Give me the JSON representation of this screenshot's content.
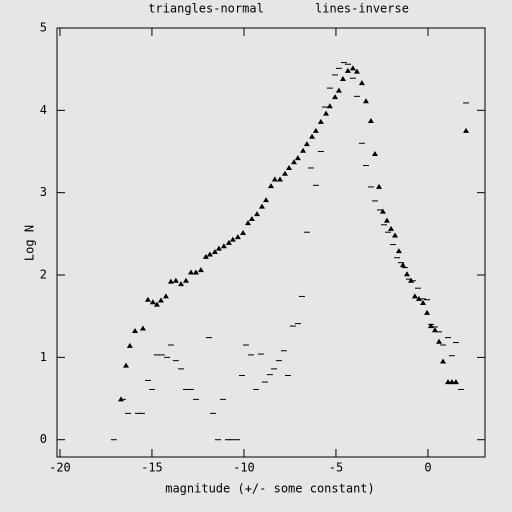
{
  "chart_data": {
    "type": "scatter",
    "x_label": "magnitude (+/- some constant)",
    "y_label": "Log N",
    "xlim": [
      -20.16,
      3.1
    ],
    "ylim": [
      -0.21,
      5
    ],
    "xticks": [
      -20,
      -15,
      -10,
      -5,
      0
    ],
    "yticks": [
      0,
      1,
      2,
      3,
      4,
      5
    ],
    "series": [
      {
        "name": "triangles-normal",
        "marker": "triangle",
        "color": "#000000",
        "x": [
          -16.68,
          -16.41,
          -16.2,
          -15.92,
          -15.49,
          -15.22,
          -14.95,
          -14.73,
          -14.51,
          -14.24,
          -13.97,
          -13.7,
          -13.42,
          -13.15,
          -12.88,
          -12.61,
          -12.34,
          -12.07,
          -11.85,
          -11.58,
          -11.36,
          -11.09,
          -10.82,
          -10.6,
          -10.33,
          -10.05,
          -9.78,
          -9.57,
          -9.29,
          -9.02,
          -8.8,
          -8.53,
          -8.32,
          -8.04,
          -7.77,
          -7.55,
          -7.28,
          -7.07,
          -6.79,
          -6.58,
          -6.3,
          -6.09,
          -5.82,
          -5.54,
          -5.33,
          -5.05,
          -4.84,
          -4.62,
          -4.35,
          -4.08,
          -3.86,
          -3.59,
          -3.37,
          -3.1,
          -2.88,
          -2.66,
          -2.45,
          -2.23,
          -2.01,
          -1.79,
          -1.58,
          -1.36,
          -1.14,
          -0.92,
          -0.71,
          -0.49,
          -0.27,
          -0.05,
          0.16,
          0.38,
          0.6,
          0.82,
          1.09,
          1.3,
          1.52,
          2.07
        ],
        "values": [
          0.49,
          0.9,
          1.14,
          1.32,
          1.35,
          1.7,
          1.67,
          1.64,
          1.69,
          1.74,
          1.92,
          1.93,
          1.89,
          1.93,
          2.03,
          2.03,
          2.06,
          2.22,
          2.25,
          2.28,
          2.32,
          2.35,
          2.39,
          2.43,
          2.46,
          2.51,
          2.63,
          2.68,
          2.74,
          2.83,
          2.91,
          3.08,
          3.16,
          3.16,
          3.23,
          3.3,
          3.37,
          3.42,
          3.51,
          3.59,
          3.68,
          3.75,
          3.86,
          3.96,
          4.05,
          4.16,
          4.24,
          4.38,
          4.48,
          4.51,
          4.47,
          4.33,
          4.11,
          3.87,
          3.47,
          3.07,
          2.77,
          2.66,
          2.56,
          2.48,
          2.29,
          2.12,
          2.01,
          1.93,
          1.74,
          1.71,
          1.66,
          1.54,
          1.38,
          1.33,
          1.19,
          0.95,
          0.7,
          0.7,
          0.7,
          3.75
        ]
      },
      {
        "name": "lines-inverse",
        "marker": "dash",
        "color": "#000000",
        "x": [
          -17.07,
          -16.58,
          -16.3,
          -15.76,
          -15.54,
          -15.22,
          -15.0,
          -14.73,
          -14.46,
          -14.18,
          -13.97,
          -13.7,
          -13.42,
          -13.15,
          -12.88,
          -12.61,
          -11.9,
          -11.68,
          -11.41,
          -11.14,
          -10.87,
          -10.65,
          -10.38,
          -10.11,
          -9.89,
          -9.62,
          -9.35,
          -9.08,
          -8.86,
          -8.59,
          -8.37,
          -8.1,
          -7.83,
          -7.61,
          -7.34,
          -7.07,
          -6.85,
          -6.58,
          -6.36,
          -6.09,
          -5.82,
          -5.6,
          -5.33,
          -5.05,
          -4.84,
          -4.57,
          -4.35,
          -4.08,
          -3.86,
          -3.59,
          -3.37,
          -3.1,
          -2.88,
          -2.61,
          -2.39,
          -2.17,
          -1.9,
          -1.68,
          -1.47,
          -1.25,
          -1.03,
          -0.82,
          -0.54,
          -0.27,
          -0.05,
          0.16,
          0.38,
          0.6,
          0.82,
          1.09,
          1.3,
          1.52,
          1.79,
          2.07
        ],
        "values": [
          0,
          0.49,
          0.32,
          0.32,
          0.32,
          0.72,
          0.61,
          1.03,
          1.03,
          1.0,
          1.15,
          0.96,
          0.86,
          0.61,
          0.61,
          0.49,
          1.24,
          0.32,
          0,
          0.49,
          0,
          0,
          0,
          0.78,
          1.15,
          1.03,
          0.61,
          1.04,
          0.7,
          0.79,
          0.86,
          0.96,
          1.08,
          0.78,
          1.38,
          1.41,
          1.74,
          2.52,
          3.3,
          3.09,
          3.5,
          4.04,
          4.27,
          4.43,
          4.51,
          4.58,
          4.56,
          4.39,
          4.17,
          3.6,
          3.33,
          3.07,
          2.9,
          2.79,
          2.61,
          2.52,
          2.37,
          2.21,
          2.15,
          2.09,
          1.95,
          1.93,
          1.84,
          1.71,
          1.7,
          1.4,
          1.37,
          1.31,
          1.15,
          1.24,
          1.02,
          1.18,
          0.61,
          4.09
        ]
      }
    ]
  }
}
